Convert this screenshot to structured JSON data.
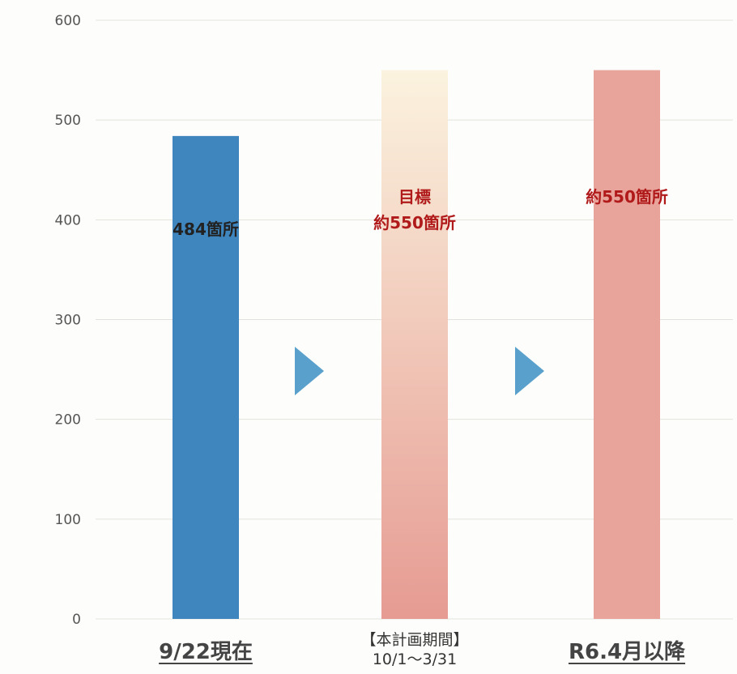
{
  "chart_data": {
    "type": "bar",
    "categories": [
      "9/22現在",
      "【本計画期間】",
      "R6.4月以降"
    ],
    "category_sublabels": [
      "",
      "10/1～3/31",
      ""
    ],
    "values": [
      484,
      550,
      550
    ],
    "data_labels": [
      [
        "484箇所"
      ],
      [
        "目標",
        "約550箇所"
      ],
      [
        "約550箇所"
      ]
    ],
    "label_colors": [
      "#222222",
      "#b01a1a",
      "#b01a1a"
    ],
    "bar_colors": [
      "#3f86bf",
      "gradient",
      "#e8a39b"
    ],
    "gradient_colors": [
      "#fbf3df",
      "#e69b92"
    ],
    "arrow_color": "#5aa0cc",
    "yticks": [
      0,
      100,
      200,
      300,
      400,
      500,
      600
    ],
    "ylim": [
      0,
      600
    ],
    "grid": true,
    "title": "",
    "xlabel": "",
    "ylabel": ""
  }
}
